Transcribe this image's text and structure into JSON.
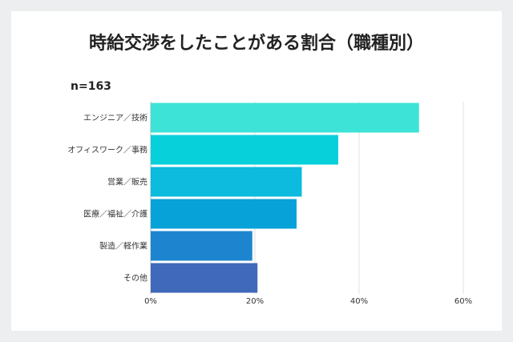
{
  "title": "時給交渉をしたことがある割合（職種別）",
  "n_label": "n=163",
  "chart_data": {
    "type": "bar",
    "orientation": "horizontal",
    "title": "時給交渉をしたことがある割合（職種別）",
    "categories": [
      "エンジニア／技術",
      "オフィスワーク／事務",
      "営業／販売",
      "医療／福祉／介護",
      "製造／軽作業",
      "その他"
    ],
    "values": [
      51.5,
      36,
      29,
      28,
      19.5,
      20.5
    ],
    "xlim": [
      0,
      60
    ],
    "xticks": [
      0,
      20,
      40,
      60
    ],
    "tick_labels": [
      "0%",
      "20%",
      "40%",
      "60%"
    ],
    "grid": true,
    "colors": [
      "#3de3d6",
      "#08d0db",
      "#0cbbdd",
      "#07a2d8",
      "#1d85cf",
      "#4169bb"
    ]
  }
}
